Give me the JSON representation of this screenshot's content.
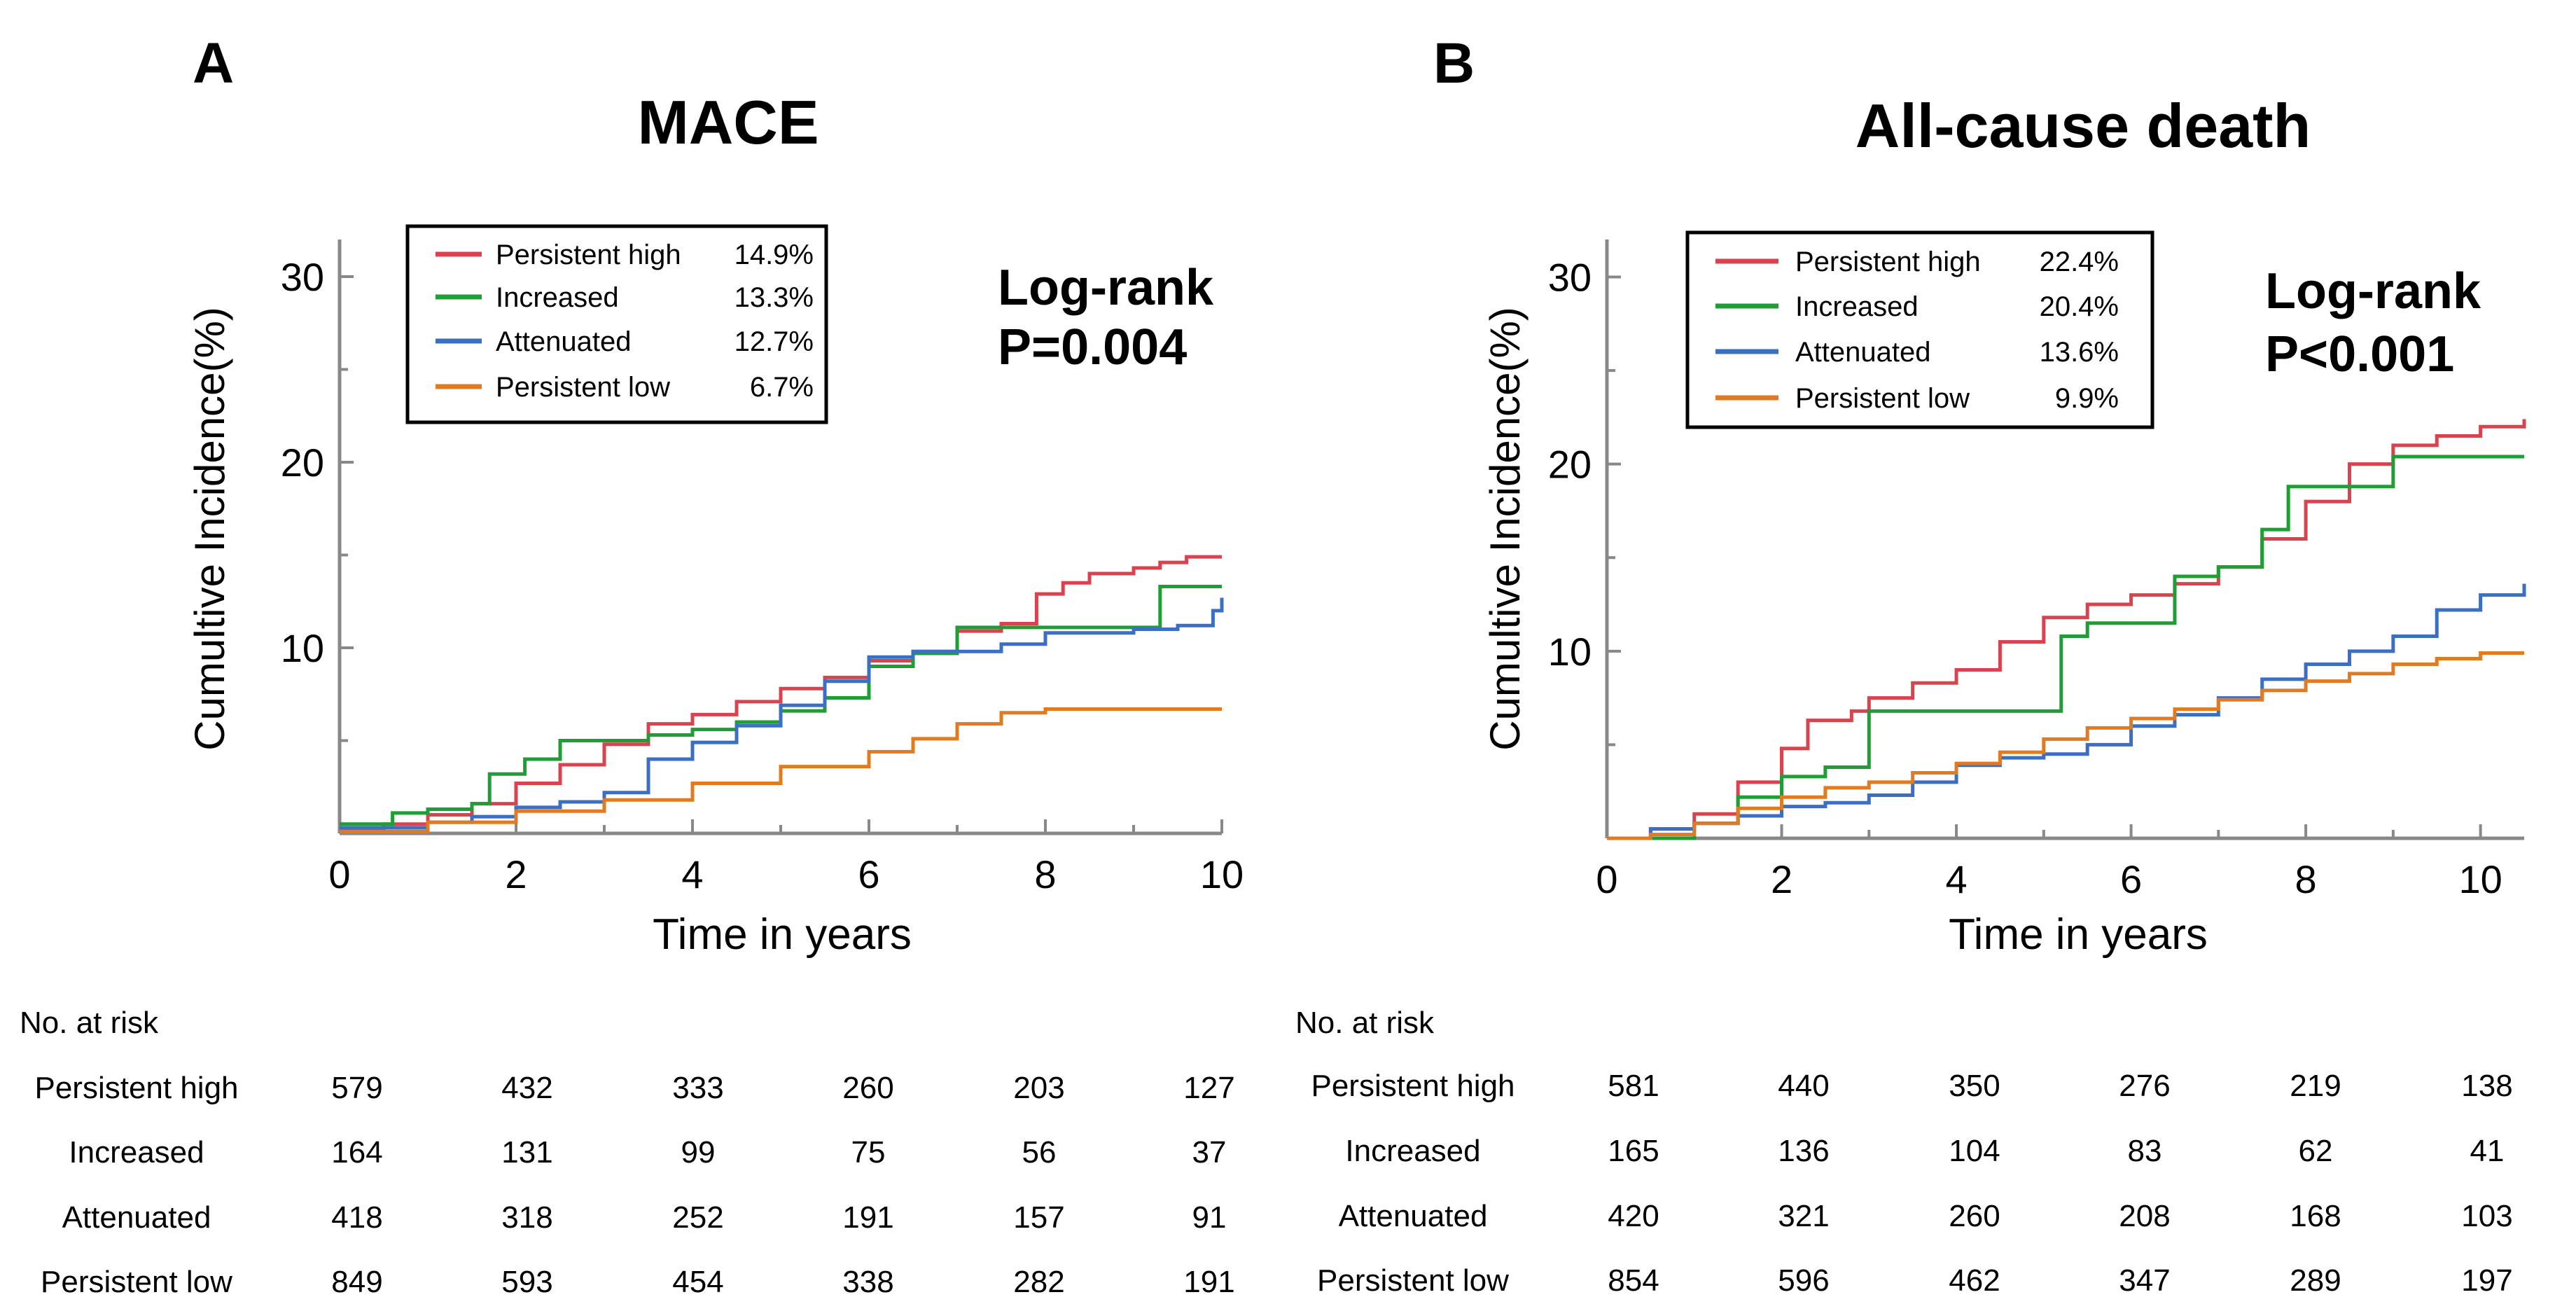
{
  "chart_data": [
    {
      "type": "line",
      "panel_label": "A",
      "title": "MACE",
      "xlabel": "Time in years",
      "ylabel": "Cumultive Incidence(%)",
      "xlim": [
        0,
        10
      ],
      "ylim": [
        0,
        32
      ],
      "xticks": [
        "0",
        "2",
        "4",
        "6",
        "8",
        "10"
      ],
      "yticks": [
        "10",
        "20",
        "30"
      ],
      "log_rank": [
        "Log-rank",
        "P=0.004"
      ],
      "series": [
        {
          "name": "Persistent high",
          "color": "#d9434f",
          "final_label": "14.9%",
          "x": [
            0,
            0.5,
            1.0,
            1.5,
            2.0,
            2.5,
            3.0,
            3.5,
            4.0,
            4.5,
            5.0,
            5.5,
            6.0,
            6.5,
            7.0,
            7.5,
            7.9,
            8.2,
            8.5,
            9.0,
            9.3,
            9.6,
            10.0
          ],
          "y": [
            0.2,
            0.5,
            1.0,
            1.6,
            2.7,
            3.7,
            4.8,
            5.9,
            6.4,
            7.1,
            7.8,
            8.4,
            9.3,
            9.8,
            10.9,
            11.3,
            12.9,
            13.5,
            14.0,
            14.3,
            14.6,
            14.9,
            14.9
          ]
        },
        {
          "name": "Increased",
          "color": "#1e9e35",
          "final_label": "13.3%",
          "x": [
            0,
            0.6,
            1.0,
            1.5,
            1.7,
            2.1,
            2.5,
            3.0,
            3.5,
            4.0,
            4.5,
            5.0,
            5.5,
            6.0,
            6.5,
            7.0,
            7.5,
            8.0,
            9.0,
            9.3,
            10.0
          ],
          "y": [
            0.5,
            1.1,
            1.3,
            1.6,
            3.2,
            4.0,
            5.0,
            5.0,
            5.3,
            5.6,
            6.0,
            6.6,
            7.3,
            9.0,
            9.7,
            11.1,
            11.1,
            11.1,
            11.1,
            13.3,
            13.3
          ]
        },
        {
          "name": "Attenuated",
          "color": "#3a6fc4",
          "final_label": "12.7%",
          "x": [
            0,
            1.0,
            1.5,
            2.0,
            2.5,
            3.0,
            3.5,
            4.0,
            4.5,
            5.0,
            5.5,
            6.0,
            6.5,
            7.0,
            7.5,
            8.0,
            9.0,
            9.5,
            9.9,
            10.0
          ],
          "y": [
            0.3,
            0.6,
            0.9,
            1.4,
            1.7,
            2.2,
            4.0,
            4.9,
            5.8,
            6.9,
            8.2,
            9.5,
            9.8,
            9.8,
            10.2,
            10.8,
            11.0,
            11.2,
            12.0,
            12.7
          ]
        },
        {
          "name": "Persistent low",
          "color": "#e07b22",
          "final_label": "6.7%",
          "x": [
            0,
            1.0,
            2.0,
            3.0,
            4.0,
            5.0,
            6.0,
            6.5,
            7.0,
            7.5,
            8.0,
            9.0,
            10.0
          ],
          "y": [
            0.1,
            0.6,
            1.2,
            1.8,
            2.7,
            3.6,
            4.4,
            5.1,
            5.9,
            6.5,
            6.7,
            6.7,
            6.7
          ]
        }
      ],
      "risk_table": {
        "title": "No. at risk",
        "columns": [
          "0",
          "2",
          "4",
          "6",
          "8",
          "10"
        ],
        "rows": [
          {
            "label": "Persistent high",
            "values": [
              "579",
              "432",
              "333",
              "260",
              "203",
              "127"
            ]
          },
          {
            "label": "Increased",
            "values": [
              "164",
              "131",
              "99",
              "75",
              "56",
              "37"
            ]
          },
          {
            "label": "Attenuated",
            "values": [
              "418",
              "318",
              "252",
              "191",
              "157",
              "91"
            ]
          },
          {
            "label": "Persistent low",
            "values": [
              "849",
              "593",
              "454",
              "338",
              "282",
              "191"
            ]
          }
        ]
      }
    },
    {
      "type": "line",
      "panel_label": "B",
      "title": "All-cause death",
      "xlabel": "Time in years",
      "ylabel": "Cumultive Incidence(%)",
      "xlim": [
        0,
        10.5
      ],
      "ylim": [
        0,
        32
      ],
      "xticks": [
        "0",
        "2",
        "4",
        "6",
        "8",
        "10"
      ],
      "yticks": [
        "10",
        "20",
        "30"
      ],
      "log_rank": [
        "Log-rank",
        "P<0.001"
      ],
      "series": [
        {
          "name": "Persistent high",
          "color": "#d9434f",
          "final_label": "22.4%",
          "x": [
            0,
            0.5,
            1.0,
            1.5,
            2.0,
            2.3,
            2.8,
            3.0,
            3.5,
            4.0,
            4.5,
            5.0,
            5.5,
            6.0,
            6.5,
            7.0,
            7.5,
            8.0,
            8.5,
            9.0,
            9.5,
            10.0,
            10.5
          ],
          "y": [
            0,
            0.5,
            1.3,
            3.0,
            4.8,
            6.3,
            6.8,
            7.5,
            8.3,
            9.0,
            10.5,
            11.8,
            12.5,
            13.0,
            13.6,
            14.5,
            16.0,
            18.0,
            20.0,
            21.0,
            21.5,
            22.0,
            22.4
          ]
        },
        {
          "name": "Increased",
          "color": "#1e9e35",
          "final_label": "20.4%",
          "x": [
            0,
            1.0,
            1.5,
            2.0,
            2.5,
            3.0,
            3.5,
            4.0,
            4.5,
            5.0,
            5.2,
            5.5,
            6.0,
            6.5,
            7.0,
            7.5,
            7.8,
            8.5,
            9.0,
            9.5,
            10.0,
            10.5
          ],
          "y": [
            0,
            0.8,
            2.2,
            3.3,
            3.8,
            6.8,
            6.8,
            6.8,
            6.8,
            6.8,
            10.8,
            11.5,
            11.5,
            14.0,
            14.5,
            16.5,
            18.8,
            18.8,
            20.4,
            20.4,
            20.4,
            20.4
          ]
        },
        {
          "name": "Attenuated",
          "color": "#3a6fc4",
          "final_label": "13.6%",
          "x": [
            0,
            0.5,
            1.0,
            1.5,
            2.0,
            2.5,
            3.0,
            3.5,
            4.0,
            4.5,
            5.0,
            5.5,
            6.0,
            6.5,
            7.0,
            7.5,
            8.0,
            8.5,
            9.0,
            9.5,
            10.0,
            10.5
          ],
          "y": [
            0,
            0.5,
            0.8,
            1.2,
            1.7,
            1.9,
            2.3,
            3.0,
            3.9,
            4.3,
            4.5,
            5.0,
            6.0,
            6.6,
            7.5,
            8.5,
            9.3,
            10.0,
            10.8,
            12.2,
            13.0,
            13.6
          ]
        },
        {
          "name": "Persistent low",
          "color": "#e07b22",
          "final_label": "9.9%",
          "x": [
            0,
            0.5,
            1.0,
            1.5,
            2.0,
            2.5,
            3.0,
            3.5,
            4.0,
            4.5,
            5.0,
            5.5,
            6.0,
            6.5,
            7.0,
            7.5,
            8.0,
            8.5,
            9.0,
            9.5,
            10.0,
            10.5
          ],
          "y": [
            0,
            0.2,
            0.8,
            1.6,
            2.2,
            2.7,
            3.0,
            3.5,
            4.0,
            4.6,
            5.3,
            5.9,
            6.4,
            6.9,
            7.4,
            7.9,
            8.4,
            8.8,
            9.3,
            9.6,
            9.9,
            9.9
          ]
        }
      ],
      "risk_table": {
        "title": "No. at risk",
        "columns": [
          "0",
          "2",
          "4",
          "6",
          "8",
          "10"
        ],
        "rows": [
          {
            "label": "Persistent high",
            "values": [
              "581",
              "440",
              "350",
              "276",
              "219",
              "138"
            ]
          },
          {
            "label": "Increased",
            "values": [
              "165",
              "136",
              "104",
              "83",
              "62",
              "41"
            ]
          },
          {
            "label": "Attenuated",
            "values": [
              "420",
              "321",
              "260",
              "208",
              "168",
              "103"
            ]
          },
          {
            "label": "Persistent low",
            "values": [
              "854",
              "596",
              "462",
              "347",
              "289",
              "197"
            ]
          }
        ]
      }
    }
  ]
}
